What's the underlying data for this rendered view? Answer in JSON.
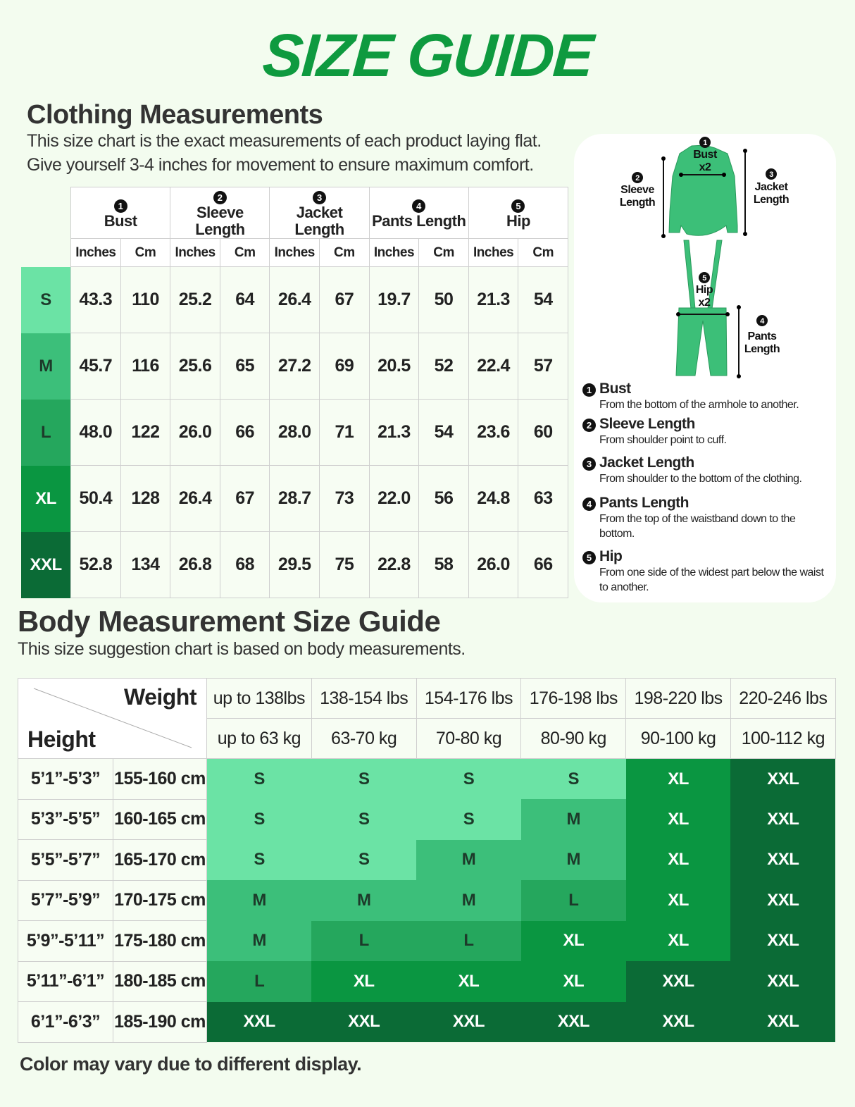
{
  "title": "SIZE GUIDE",
  "clothing": {
    "heading": "Clothing Measurements",
    "desc1": "This size chart is the exact measurements of each product laying flat.",
    "desc2": "Give yourself 3-4 inches for movement to ensure maximum comfort.",
    "groups": [
      {
        "n": "1",
        "label": "Bust"
      },
      {
        "n": "2",
        "label": "Sleeve Length"
      },
      {
        "n": "3",
        "label": "Jacket Length"
      },
      {
        "n": "4",
        "label": "Pants Length"
      },
      {
        "n": "5",
        "label": "Hip"
      }
    ],
    "units": [
      "Inches",
      "Cm"
    ],
    "rows": [
      {
        "size": "S",
        "values": [
          "43.3",
          "110",
          "25.2",
          "64",
          "26.4",
          "67",
          "19.7",
          "50",
          "21.3",
          "54"
        ]
      },
      {
        "size": "M",
        "values": [
          "45.7",
          "116",
          "25.6",
          "65",
          "27.2",
          "69",
          "20.5",
          "52",
          "22.4",
          "57"
        ]
      },
      {
        "size": "L",
        "values": [
          "48.0",
          "122",
          "26.0",
          "66",
          "28.0",
          "71",
          "21.3",
          "54",
          "23.6",
          "60"
        ]
      },
      {
        "size": "XL",
        "values": [
          "50.4",
          "128",
          "26.4",
          "67",
          "28.7",
          "73",
          "22.0",
          "56",
          "24.8",
          "63"
        ]
      },
      {
        "size": "XXL",
        "values": [
          "52.8",
          "134",
          "26.8",
          "68",
          "29.5",
          "75",
          "22.8",
          "58",
          "26.0",
          "66"
        ]
      }
    ]
  },
  "diagram": {
    "bust": "Bust",
    "bust_x": "x2",
    "sleeve1": "Sleeve",
    "sleeve2": "Length",
    "jacket1": "Jacket",
    "jacket2": "Length",
    "hip": "Hip",
    "hip_x": "x2",
    "pants1": "Pants",
    "pants2": "Length",
    "garment_color": "#3cbf78"
  },
  "definitions": [
    {
      "n": "1",
      "title": "Bust",
      "text": "From the bottom of the armhole to another."
    },
    {
      "n": "2",
      "title": "Sleeve Length",
      "text": "From shoulder point to cuff."
    },
    {
      "n": "3",
      "title": "Jacket Length",
      "text": "From shoulder to the bottom of the clothing."
    },
    {
      "n": "4",
      "title": "Pants Length",
      "text": "From the top of the waistband down to the bottom."
    },
    {
      "n": "5",
      "title": "Hip",
      "text": "From one side of the widest part below the waist to another."
    }
  ],
  "body": {
    "heading": "Body Measurement Size Guide",
    "sub": "This size suggestion chart is based on body measurements.",
    "weight_label": "Weight",
    "height_label": "Height",
    "lbs": [
      "up to 138lbs",
      "138-154 lbs",
      "154-176 lbs",
      "176-198 lbs",
      "198-220 lbs",
      "220-246 lbs"
    ],
    "kg": [
      "up to 63 kg",
      "63-70 kg",
      "70-80 kg",
      "80-90 kg",
      "90-100 kg",
      "100-112 kg"
    ],
    "rows": [
      {
        "ft": "5’1”-5’3”",
        "cm": "155-160 cm",
        "sizes": [
          "S",
          "S",
          "S",
          "S",
          "XL",
          "XXL"
        ]
      },
      {
        "ft": "5’3”-5’5”",
        "cm": "160-165 cm",
        "sizes": [
          "S",
          "S",
          "S",
          "M",
          "XL",
          "XXL"
        ]
      },
      {
        "ft": "5’5”-5’7”",
        "cm": "165-170 cm",
        "sizes": [
          "S",
          "S",
          "M",
          "M",
          "XL",
          "XXL"
        ]
      },
      {
        "ft": "5’7”-5’9”",
        "cm": "170-175 cm",
        "sizes": [
          "M",
          "M",
          "M",
          "L",
          "XL",
          "XXL"
        ]
      },
      {
        "ft": "5’9”-5’11”",
        "cm": "175-180 cm",
        "sizes": [
          "M",
          "L",
          "L",
          "XL",
          "XL",
          "XXL"
        ]
      },
      {
        "ft": "5’11”-6’1”",
        "cm": "180-185 cm",
        "sizes": [
          "L",
          "XL",
          "XL",
          "XL",
          "XXL",
          "XXL"
        ]
      },
      {
        "ft": "6’1”-6’3”",
        "cm": "185-190 cm",
        "sizes": [
          "XXL",
          "XXL",
          "XXL",
          "XXL",
          "XXL",
          "XXL"
        ]
      }
    ]
  },
  "size_colors": {
    "S": "#6be3a5",
    "M": "#3cbf7a",
    "L": "#25a75d",
    "XL": "#0a9641",
    "XXL": "#0b6b36"
  },
  "footer": "Color may vary due to different display."
}
